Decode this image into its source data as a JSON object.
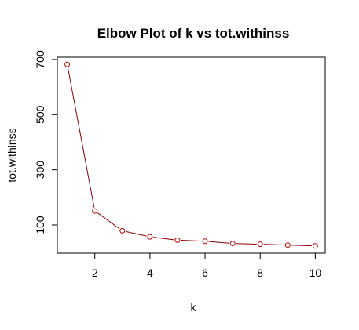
{
  "chart_data": {
    "type": "line",
    "title": "Elbow Plot of k vs tot.withinss",
    "xlabel": "k",
    "ylabel": "tot.withinss",
    "x": [
      1,
      2,
      3,
      4,
      5,
      6,
      7,
      8,
      9,
      10
    ],
    "series": [
      {
        "values": [
          682,
          151,
          79,
          57,
          45,
          41,
          33,
          30,
          27,
          24
        ]
      }
    ],
    "xticks": [
      2,
      4,
      6,
      8,
      10
    ],
    "yticks": [
      100,
      300,
      500,
      700
    ],
    "xlim": [
      0.64,
      10.36
    ],
    "ylim": [
      -2.3,
      708.3
    ],
    "line_color": "#8b0000",
    "point_color": "#c00000",
    "grid": false,
    "legend": "none"
  }
}
